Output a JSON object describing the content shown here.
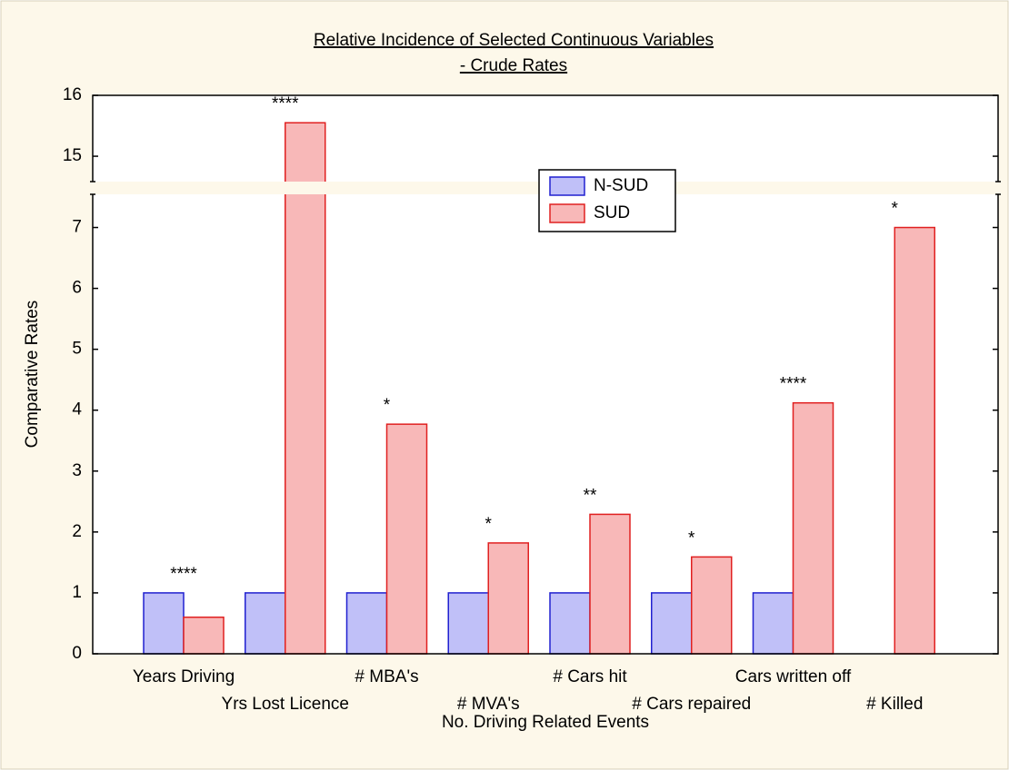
{
  "chart_data": {
    "type": "bar",
    "title": "Relative Incidence of Selected Continuous Variables",
    "subtitle": "- Crude Rates",
    "x_label": "No. Driving Related Events",
    "y_label": "Comparative Rates",
    "categories": [
      "Years Driving",
      "Yrs Lost Licence",
      "# MBA's",
      "# MVA's",
      "# Cars hit",
      "# Cars repaired",
      "Cars written off",
      "# Killed"
    ],
    "series": [
      {
        "name": "N-SUD",
        "color": "#c0c0f8",
        "edge_color": "#2020d0",
        "values": [
          1,
          1,
          1,
          1,
          1,
          1,
          1,
          null
        ]
      },
      {
        "name": "SUD",
        "color": "#f8b8b8",
        "edge_color": "#e02020",
        "values": [
          0.6,
          15.55,
          3.77,
          1.82,
          2.29,
          1.59,
          4.12,
          7.0
        ]
      }
    ],
    "annotations": [
      "****",
      "****",
      "*",
      "*",
      "**",
      "*",
      "****",
      "*"
    ],
    "ylim": [
      0,
      7.5
    ],
    "yticks": [
      0,
      1,
      2,
      3,
      4,
      5,
      6,
      7
    ],
    "y_break": {
      "ylim": [
        14.6,
        16
      ],
      "yticks": [
        15,
        16
      ]
    },
    "legend": "top-center"
  }
}
